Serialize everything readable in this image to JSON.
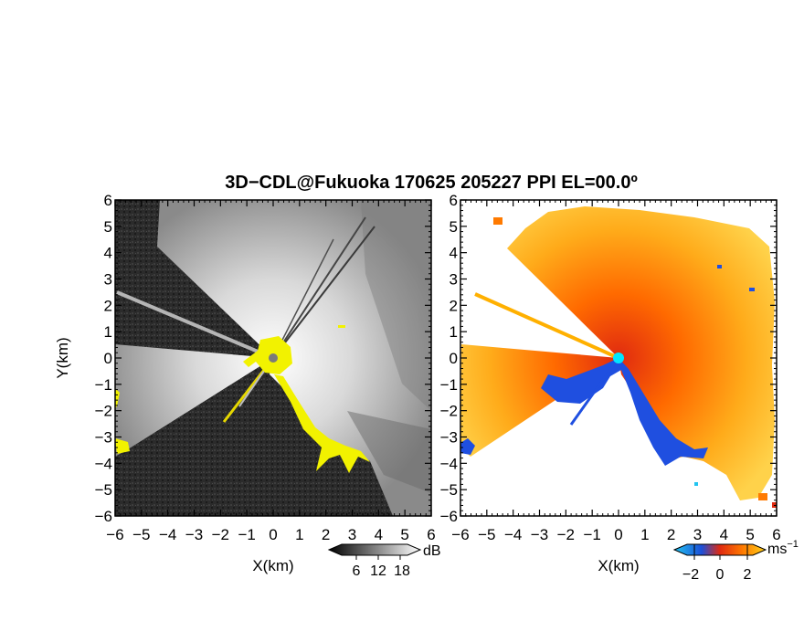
{
  "chart_data": {
    "title": "3D−CDL@Fukuoka 170625 205227 PPI EL=00.0º",
    "panels": [
      {
        "type": "heatmap",
        "quantity": "reflectivity / SNR (grayscale)",
        "xlabel": "X(km)",
        "ylabel": "Y(km)",
        "xlim": [
          -6,
          6
        ],
        "ylim": [
          -6,
          6
        ],
        "x_ticks": [
          "−6",
          "−5",
          "−4",
          "−3",
          "−2",
          "−1",
          "0",
          "1",
          "2",
          "3",
          "4",
          "5",
          "6"
        ],
        "y_ticks": [
          "−6",
          "−5",
          "−4",
          "−3",
          "−2",
          "−1",
          "0",
          "1",
          "2",
          "3",
          "4",
          "5",
          "6"
        ],
        "colorbar": {
          "unit": "dB",
          "ticks": [
            "6",
            "12",
            "18"
          ],
          "colors": [
            "#000000",
            "#ffffff"
          ]
        },
        "highlight_color": "#f2f200",
        "background_color": "#2b2b2b"
      },
      {
        "type": "heatmap",
        "quantity": "radial velocity",
        "xlabel": "X(km)",
        "xlim": [
          -6,
          6
        ],
        "ylim": [
          -6,
          6
        ],
        "x_ticks": [
          "−6",
          "−5",
          "−4",
          "−3",
          "−2",
          "−1",
          "0",
          "1",
          "2",
          "3",
          "4",
          "5",
          "6"
        ],
        "y_ticks": [
          "−6",
          "−5",
          "−4",
          "−3",
          "−2",
          "−1",
          "0",
          "1",
          "2",
          "3",
          "4",
          "5",
          "6"
        ],
        "colorbar": {
          "unit": "ms",
          "unit_exponent": "−1",
          "ticks": [
            "−2",
            "0",
            "2"
          ],
          "colors": [
            "#22c4f0",
            "#1c4fd8",
            "#e02a10",
            "#ff7a00",
            "#ffd21a"
          ]
        },
        "origin_color": "#00e5ff"
      }
    ]
  }
}
